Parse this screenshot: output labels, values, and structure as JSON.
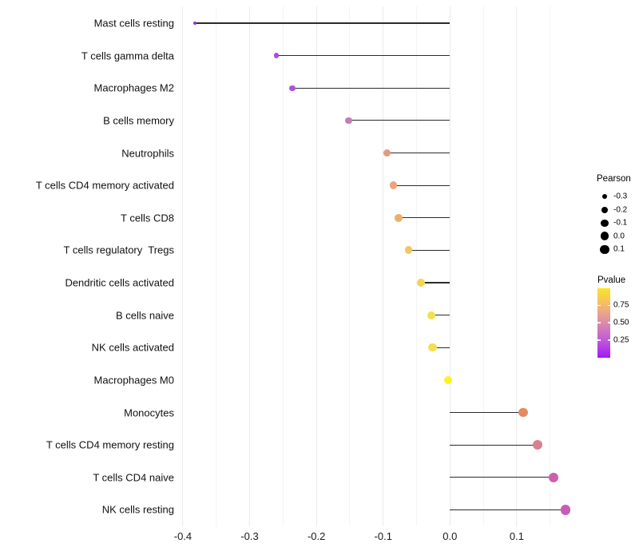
{
  "chart_data": {
    "type": "lollipop",
    "orientation": "horizontal",
    "title": "",
    "xlabel": "",
    "ylabel": "",
    "baseline": 0,
    "xlim": [
      -0.4095,
      0.179
    ],
    "grid": "vertical, light gray, no panel border",
    "categories": [
      "Mast cells resting",
      "T cells gamma delta",
      "Macrophages M2",
      "B cells memory",
      "Neutrophils",
      "T cells CD4 memory activated",
      "T cells CD8",
      "T cells regulatory  Tregs",
      "Dendritic cells activated",
      "B cells naive",
      "NK cells activated",
      "Macrophages M0",
      "Monocytes",
      "T cells CD4 memory resting",
      "T cells CD4 naive",
      "NK cells resting"
    ],
    "series": [
      {
        "name": "Pearson",
        "values": [
          -0.382,
          -0.26,
          -0.236,
          -0.152,
          -0.094,
          -0.085,
          -0.077,
          -0.062,
          -0.043,
          -0.028,
          -0.026,
          -0.003,
          0.11,
          0.131,
          0.155,
          0.173
        ]
      }
    ],
    "point_colors": [
      "#9232D8",
      "#AB50D5",
      "#AE53D0",
      "#C87BB5",
      "#E09B80",
      "#E8A47B",
      "#ECB06C",
      "#F1C75F",
      "#F6D44F",
      "#F4E04E",
      "#F4DF4C",
      "#FBF322",
      "#E58A64",
      "#DB7F8E",
      "#CC5FAE",
      "#CB5CB4"
    ],
    "stem_color": "#2b2b2b",
    "x_ticks": {
      "values": [
        -0.4,
        -0.3,
        -0.2,
        -0.1,
        0.0,
        0.1
      ],
      "labels": [
        "-0.4",
        "-0.3",
        "-0.2",
        "-0.1",
        "0.0",
        "0.1"
      ]
    },
    "x_minor_ticks": [
      -0.35,
      -0.25,
      -0.15,
      -0.05,
      0.05,
      0.15
    ],
    "legends": {
      "size": {
        "title": "Pearson",
        "position": "right",
        "entries": [
          {
            "label": "-0.3",
            "value": -0.3
          },
          {
            "label": "-0.2",
            "value": -0.2
          },
          {
            "label": "-0.1",
            "value": -0.1
          },
          {
            "label": "0.0",
            "value": 0.0
          },
          {
            "label": "0.1",
            "value": 0.1
          }
        ]
      },
      "color": {
        "title": "Pvalue",
        "position": "right",
        "gradient_top_to_bottom": [
          "#FAE622",
          "#F3B871",
          "#DE8AAB",
          "#C158DC",
          "#A01BF2"
        ],
        "entries": [
          {
            "label": "0.75",
            "frac_from_top": 0.245
          },
          {
            "label": "0.50",
            "frac_from_top": 0.495
          },
          {
            "label": "0.25",
            "frac_from_top": 0.745
          }
        ]
      }
    }
  }
}
